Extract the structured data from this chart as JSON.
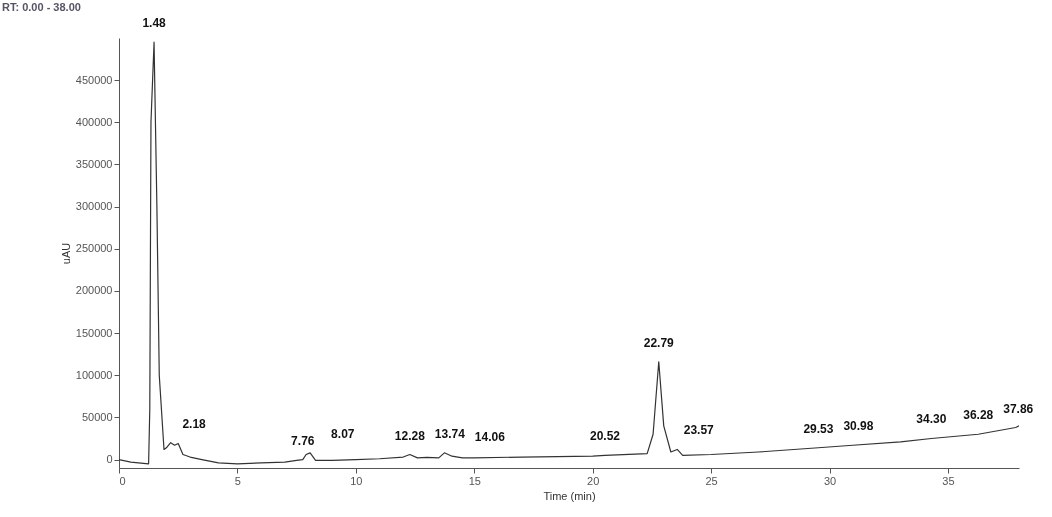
{
  "chart_data": {
    "type": "line",
    "title": "RT: 0.00 - 38.00",
    "xlabel": "Time (min)",
    "ylabel": "uAU",
    "x": [
      0,
      0.5,
      1.25,
      1.3,
      1.35,
      1.48,
      1.6,
      1.7,
      1.9,
      2.0,
      2.18,
      2.35,
      2.5,
      2.7,
      3.0,
      3.5,
      4.2,
      5,
      6,
      7,
      7.5,
      7.76,
      7.9,
      8.07,
      8.3,
      9,
      10,
      11,
      12.0,
      12.28,
      12.6,
      13.0,
      13.5,
      13.74,
      14.06,
      14.5,
      15,
      17,
      20,
      20.52,
      22.3,
      22.55,
      22.79,
      23.0,
      23.3,
      23.57,
      23.8,
      25,
      27,
      29.53,
      30.98,
      33,
      34.3,
      36.28,
      37.86,
      38
    ],
    "series": [
      {
        "color": "#333333",
        "values": [
          0,
          -3000,
          -5000,
          60000,
          400000,
          495000,
          300000,
          100000,
          12000,
          14000,
          20000,
          17000,
          19000,
          6000,
          3000,
          0,
          -4000,
          -5000,
          -4000,
          -3000,
          -1000,
          0,
          6000,
          8000,
          -1000,
          -1000,
          0,
          1000,
          3000,
          6000,
          2000,
          2500,
          2000,
          8000,
          4000,
          2000,
          2000,
          3000,
          4000,
          5000,
          7000,
          30000,
          116000,
          40000,
          9000,
          12000,
          5000,
          6000,
          9000,
          14000,
          17000,
          21000,
          25000,
          30000,
          38000,
          40000
        ]
      }
    ],
    "annotations": [
      {
        "text": "1.48",
        "x": 1.48,
        "y": 495000
      },
      {
        "text": "2.18",
        "x": 2.18,
        "y": 20000
      },
      {
        "text": "7.76",
        "x": 7.76,
        "y": 0
      },
      {
        "text": "8.07",
        "x": 8.07,
        "y": 8000
      },
      {
        "text": "12.28",
        "x": 12.28,
        "y": 6000
      },
      {
        "text": "13.74",
        "x": 13.74,
        "y": 8000
      },
      {
        "text": "14.06",
        "x": 14.06,
        "y": 4000
      },
      {
        "text": "20.52",
        "x": 20.52,
        "y": 5000
      },
      {
        "text": "22.79",
        "x": 22.79,
        "y": 116000
      },
      {
        "text": "23.57",
        "x": 23.57,
        "y": 12000
      },
      {
        "text": "29.53",
        "x": 29.53,
        "y": 14000
      },
      {
        "text": "30.98",
        "x": 30.98,
        "y": 17000
      },
      {
        "text": "34.30",
        "x": 34.3,
        "y": 25000
      },
      {
        "text": "36.28",
        "x": 36.28,
        "y": 30000
      },
      {
        "text": "37.86",
        "x": 37.86,
        "y": 38000
      }
    ],
    "xlim": [
      0,
      38
    ],
    "xticks": [
      0,
      5,
      10,
      15,
      20,
      25,
      30,
      35
    ],
    "ylim": [
      -10000,
      500000
    ],
    "yticks": [
      0,
      50000,
      100000,
      150000,
      200000,
      250000,
      300000,
      350000,
      400000,
      450000
    ],
    "grid": false,
    "marker": "none",
    "line_style": "solid"
  }
}
